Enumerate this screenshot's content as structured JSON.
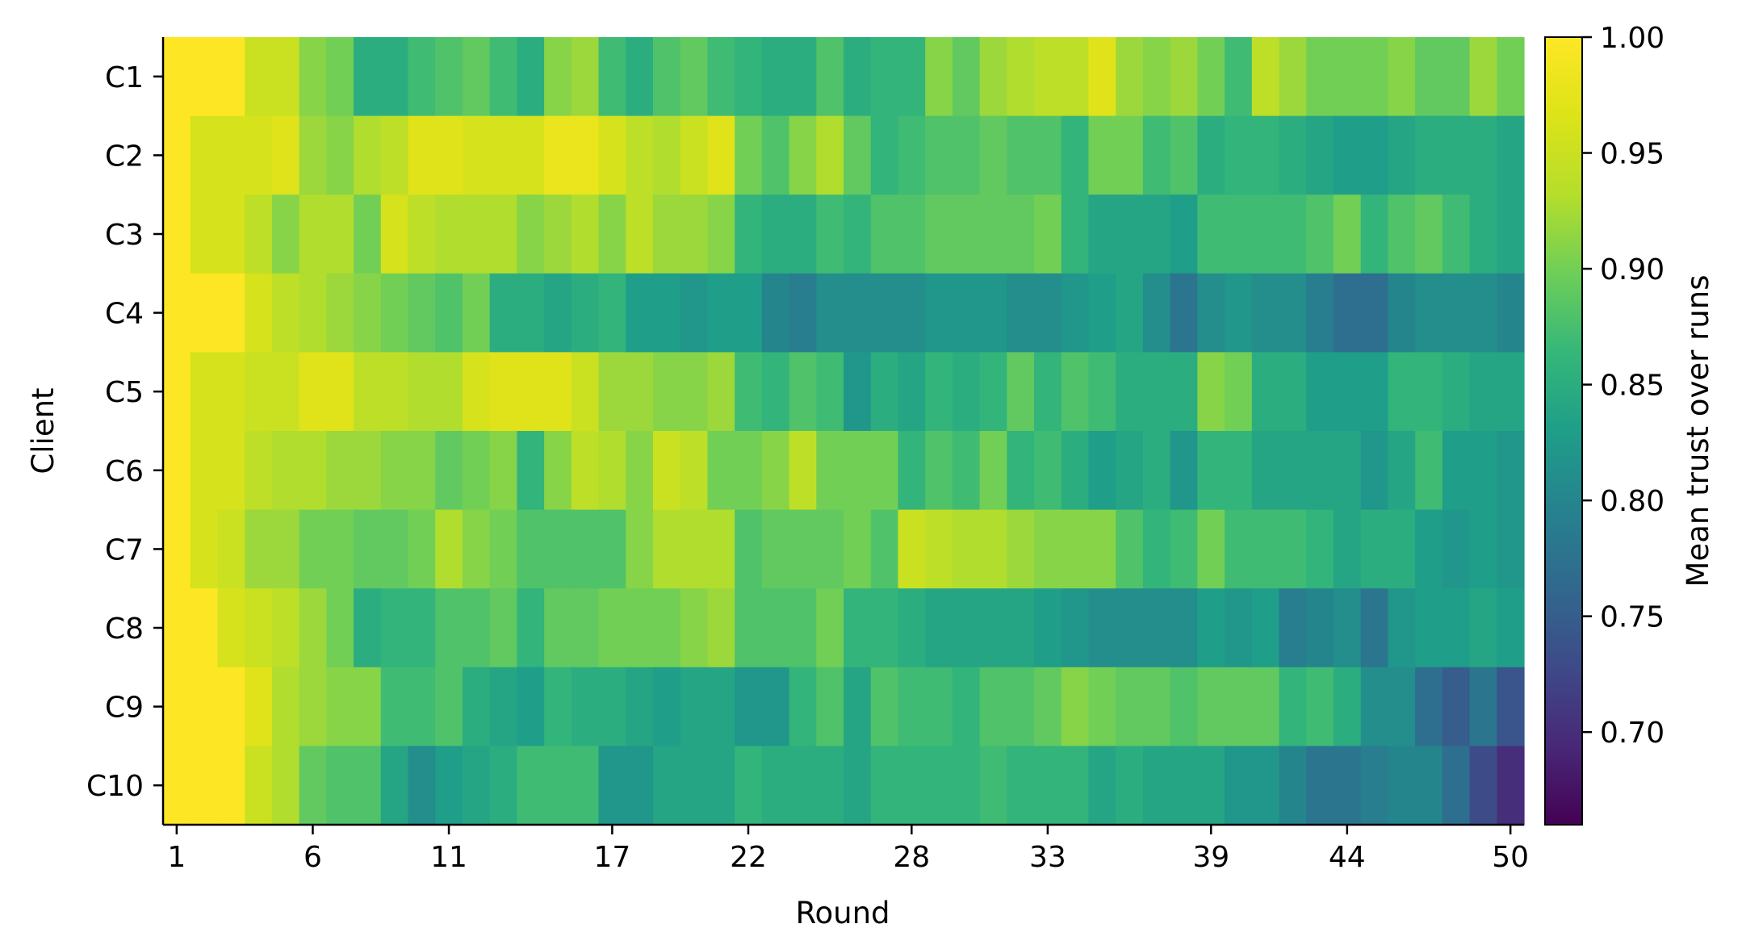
{
  "chart_data": {
    "type": "heatmap",
    "xlabel": "Round",
    "ylabel": "Client",
    "colorbar_label": "Mean trust over runs",
    "colormap": "viridis",
    "vmin": 0.66,
    "vmax": 1.0,
    "x_ticks": [
      1,
      6,
      11,
      17,
      22,
      28,
      33,
      39,
      44,
      50
    ],
    "colorbar_ticks": [
      "0.70",
      "0.75",
      "0.80",
      "0.85",
      "0.90",
      "0.95",
      "1.00"
    ],
    "rows": [
      "C1",
      "C2",
      "C3",
      "C4",
      "C5",
      "C6",
      "C7",
      "C8",
      "C9",
      "C10"
    ],
    "x": [
      1,
      2,
      3,
      4,
      5,
      6,
      7,
      8,
      9,
      10,
      11,
      12,
      13,
      14,
      15,
      16,
      17,
      18,
      19,
      20,
      21,
      22,
      23,
      24,
      25,
      26,
      27,
      28,
      29,
      30,
      31,
      32,
      33,
      34,
      35,
      36,
      37,
      38,
      39,
      40,
      41,
      42,
      43,
      44,
      45,
      46,
      47,
      48,
      49,
      50
    ],
    "values": [
      [
        1.0,
        1.0,
        1.0,
        0.95,
        0.95,
        0.91,
        0.9,
        0.85,
        0.85,
        0.87,
        0.88,
        0.89,
        0.87,
        0.85,
        0.91,
        0.92,
        0.87,
        0.85,
        0.88,
        0.89,
        0.87,
        0.86,
        0.85,
        0.85,
        0.88,
        0.85,
        0.86,
        0.86,
        0.91,
        0.89,
        0.92,
        0.93,
        0.94,
        0.94,
        0.97,
        0.92,
        0.91,
        0.92,
        0.9,
        0.87,
        0.94,
        0.92,
        0.9,
        0.9,
        0.9,
        0.91,
        0.89,
        0.89,
        0.92,
        0.9
      ],
      [
        1.0,
        0.96,
        0.96,
        0.96,
        0.97,
        0.92,
        0.91,
        0.93,
        0.94,
        0.97,
        0.97,
        0.96,
        0.96,
        0.96,
        0.98,
        0.98,
        0.96,
        0.94,
        0.93,
        0.95,
        0.97,
        0.9,
        0.88,
        0.91,
        0.93,
        0.89,
        0.86,
        0.87,
        0.88,
        0.88,
        0.89,
        0.88,
        0.88,
        0.86,
        0.9,
        0.9,
        0.87,
        0.88,
        0.85,
        0.86,
        0.86,
        0.85,
        0.84,
        0.83,
        0.83,
        0.84,
        0.85,
        0.85,
        0.85,
        0.84
      ],
      [
        1.0,
        0.96,
        0.96,
        0.94,
        0.91,
        0.93,
        0.93,
        0.9,
        0.96,
        0.94,
        0.93,
        0.93,
        0.93,
        0.91,
        0.92,
        0.93,
        0.91,
        0.94,
        0.92,
        0.92,
        0.91,
        0.86,
        0.85,
        0.85,
        0.87,
        0.86,
        0.88,
        0.88,
        0.89,
        0.89,
        0.89,
        0.89,
        0.9,
        0.86,
        0.84,
        0.84,
        0.84,
        0.83,
        0.87,
        0.87,
        0.87,
        0.87,
        0.88,
        0.9,
        0.86,
        0.88,
        0.89,
        0.87,
        0.85,
        0.84
      ],
      [
        1.0,
        1.0,
        1.0,
        0.96,
        0.94,
        0.93,
        0.92,
        0.91,
        0.9,
        0.89,
        0.88,
        0.9,
        0.85,
        0.85,
        0.84,
        0.85,
        0.86,
        0.83,
        0.83,
        0.82,
        0.83,
        0.83,
        0.8,
        0.79,
        0.81,
        0.81,
        0.81,
        0.81,
        0.82,
        0.82,
        0.82,
        0.81,
        0.81,
        0.82,
        0.83,
        0.84,
        0.81,
        0.78,
        0.81,
        0.82,
        0.81,
        0.81,
        0.79,
        0.77,
        0.77,
        0.8,
        0.81,
        0.81,
        0.81,
        0.8
      ],
      [
        1.0,
        0.96,
        0.96,
        0.95,
        0.95,
        0.97,
        0.97,
        0.94,
        0.94,
        0.93,
        0.93,
        0.96,
        0.97,
        0.97,
        0.97,
        0.95,
        0.92,
        0.92,
        0.91,
        0.91,
        0.92,
        0.87,
        0.86,
        0.88,
        0.87,
        0.82,
        0.85,
        0.84,
        0.86,
        0.85,
        0.86,
        0.89,
        0.86,
        0.88,
        0.87,
        0.85,
        0.85,
        0.85,
        0.91,
        0.9,
        0.85,
        0.85,
        0.83,
        0.83,
        0.83,
        0.86,
        0.86,
        0.85,
        0.84,
        0.84
      ],
      [
        1.0,
        0.96,
        0.96,
        0.94,
        0.93,
        0.93,
        0.92,
        0.92,
        0.91,
        0.91,
        0.89,
        0.9,
        0.91,
        0.86,
        0.91,
        0.94,
        0.93,
        0.91,
        0.95,
        0.94,
        0.9,
        0.9,
        0.91,
        0.94,
        0.9,
        0.9,
        0.9,
        0.86,
        0.88,
        0.87,
        0.9,
        0.86,
        0.87,
        0.85,
        0.83,
        0.84,
        0.85,
        0.82,
        0.86,
        0.86,
        0.84,
        0.84,
        0.84,
        0.84,
        0.82,
        0.84,
        0.87,
        0.83,
        0.83,
        0.82
      ],
      [
        1.0,
        0.96,
        0.95,
        0.92,
        0.92,
        0.9,
        0.9,
        0.89,
        0.89,
        0.9,
        0.93,
        0.91,
        0.9,
        0.88,
        0.88,
        0.88,
        0.88,
        0.91,
        0.93,
        0.93,
        0.93,
        0.88,
        0.89,
        0.89,
        0.89,
        0.9,
        0.88,
        0.95,
        0.94,
        0.93,
        0.93,
        0.92,
        0.91,
        0.91,
        0.91,
        0.88,
        0.86,
        0.87,
        0.9,
        0.87,
        0.87,
        0.87,
        0.86,
        0.84,
        0.85,
        0.85,
        0.83,
        0.82,
        0.83,
        0.82
      ],
      [
        1.0,
        1.0,
        0.96,
        0.95,
        0.94,
        0.92,
        0.9,
        0.85,
        0.86,
        0.86,
        0.88,
        0.88,
        0.89,
        0.86,
        0.89,
        0.89,
        0.9,
        0.9,
        0.9,
        0.91,
        0.92,
        0.88,
        0.88,
        0.88,
        0.9,
        0.86,
        0.86,
        0.85,
        0.84,
        0.84,
        0.84,
        0.84,
        0.83,
        0.82,
        0.81,
        0.81,
        0.81,
        0.81,
        0.83,
        0.82,
        0.83,
        0.79,
        0.8,
        0.81,
        0.78,
        0.82,
        0.83,
        0.83,
        0.84,
        0.83
      ],
      [
        1.0,
        1.0,
        1.0,
        0.97,
        0.93,
        0.92,
        0.91,
        0.91,
        0.87,
        0.87,
        0.88,
        0.85,
        0.84,
        0.83,
        0.86,
        0.85,
        0.85,
        0.84,
        0.83,
        0.84,
        0.84,
        0.82,
        0.82,
        0.86,
        0.88,
        0.84,
        0.88,
        0.87,
        0.87,
        0.86,
        0.88,
        0.88,
        0.89,
        0.91,
        0.9,
        0.89,
        0.89,
        0.88,
        0.89,
        0.89,
        0.89,
        0.86,
        0.87,
        0.85,
        0.81,
        0.81,
        0.77,
        0.75,
        0.78,
        0.74
      ],
      [
        1.0,
        1.0,
        1.0,
        0.95,
        0.93,
        0.89,
        0.88,
        0.88,
        0.84,
        0.81,
        0.83,
        0.84,
        0.85,
        0.87,
        0.87,
        0.87,
        0.82,
        0.82,
        0.84,
        0.84,
        0.84,
        0.86,
        0.85,
        0.85,
        0.85,
        0.84,
        0.86,
        0.86,
        0.86,
        0.86,
        0.87,
        0.86,
        0.86,
        0.86,
        0.84,
        0.85,
        0.84,
        0.84,
        0.84,
        0.82,
        0.82,
        0.8,
        0.78,
        0.78,
        0.79,
        0.8,
        0.8,
        0.77,
        0.73,
        0.7
      ]
    ]
  }
}
